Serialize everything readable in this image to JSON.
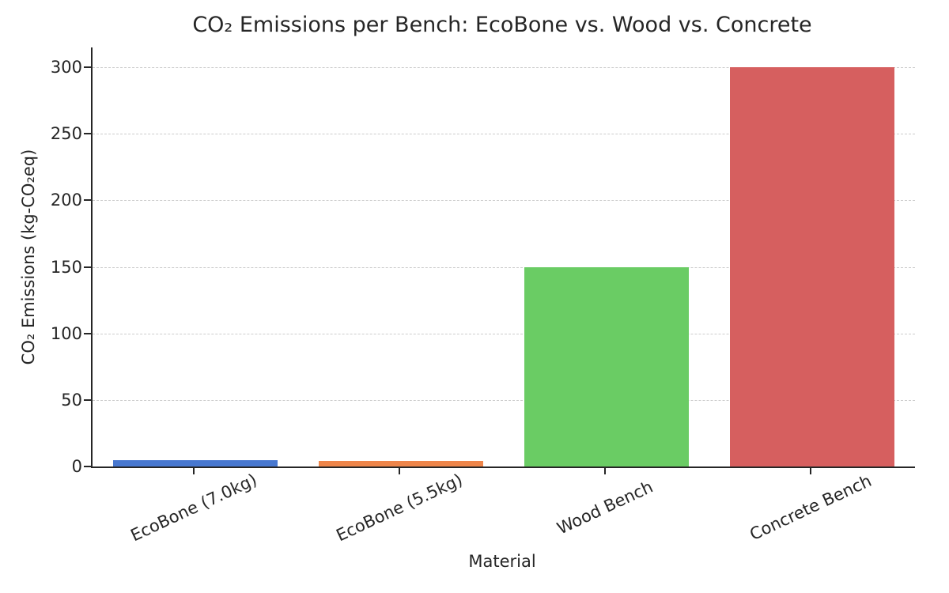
{
  "chart_data": {
    "type": "bar",
    "title": "CO₂ Emissions per Bench: EcoBone vs. Wood vs. Concrete",
    "xlabel": "Material",
    "ylabel": "CO₂ Emissions (kg-CO₂eq)",
    "categories": [
      "EcoBone (7.0kg)",
      "EcoBone (5.5kg)",
      "Wood Bench",
      "Concrete Bench"
    ],
    "values": [
      5,
      4,
      150,
      300
    ],
    "bar_colors": [
      "#4878D0",
      "#EE854A",
      "#6ACC64",
      "#D65F5F"
    ],
    "yticks": [
      0,
      50,
      100,
      150,
      200,
      250,
      300
    ],
    "ylim": [
      0,
      315
    ],
    "grid": {
      "axis": "y",
      "style": "dashed",
      "color": "#cccccc"
    },
    "xtick_rotation_deg": 25,
    "legend": "none",
    "background": "#ffffff"
  }
}
